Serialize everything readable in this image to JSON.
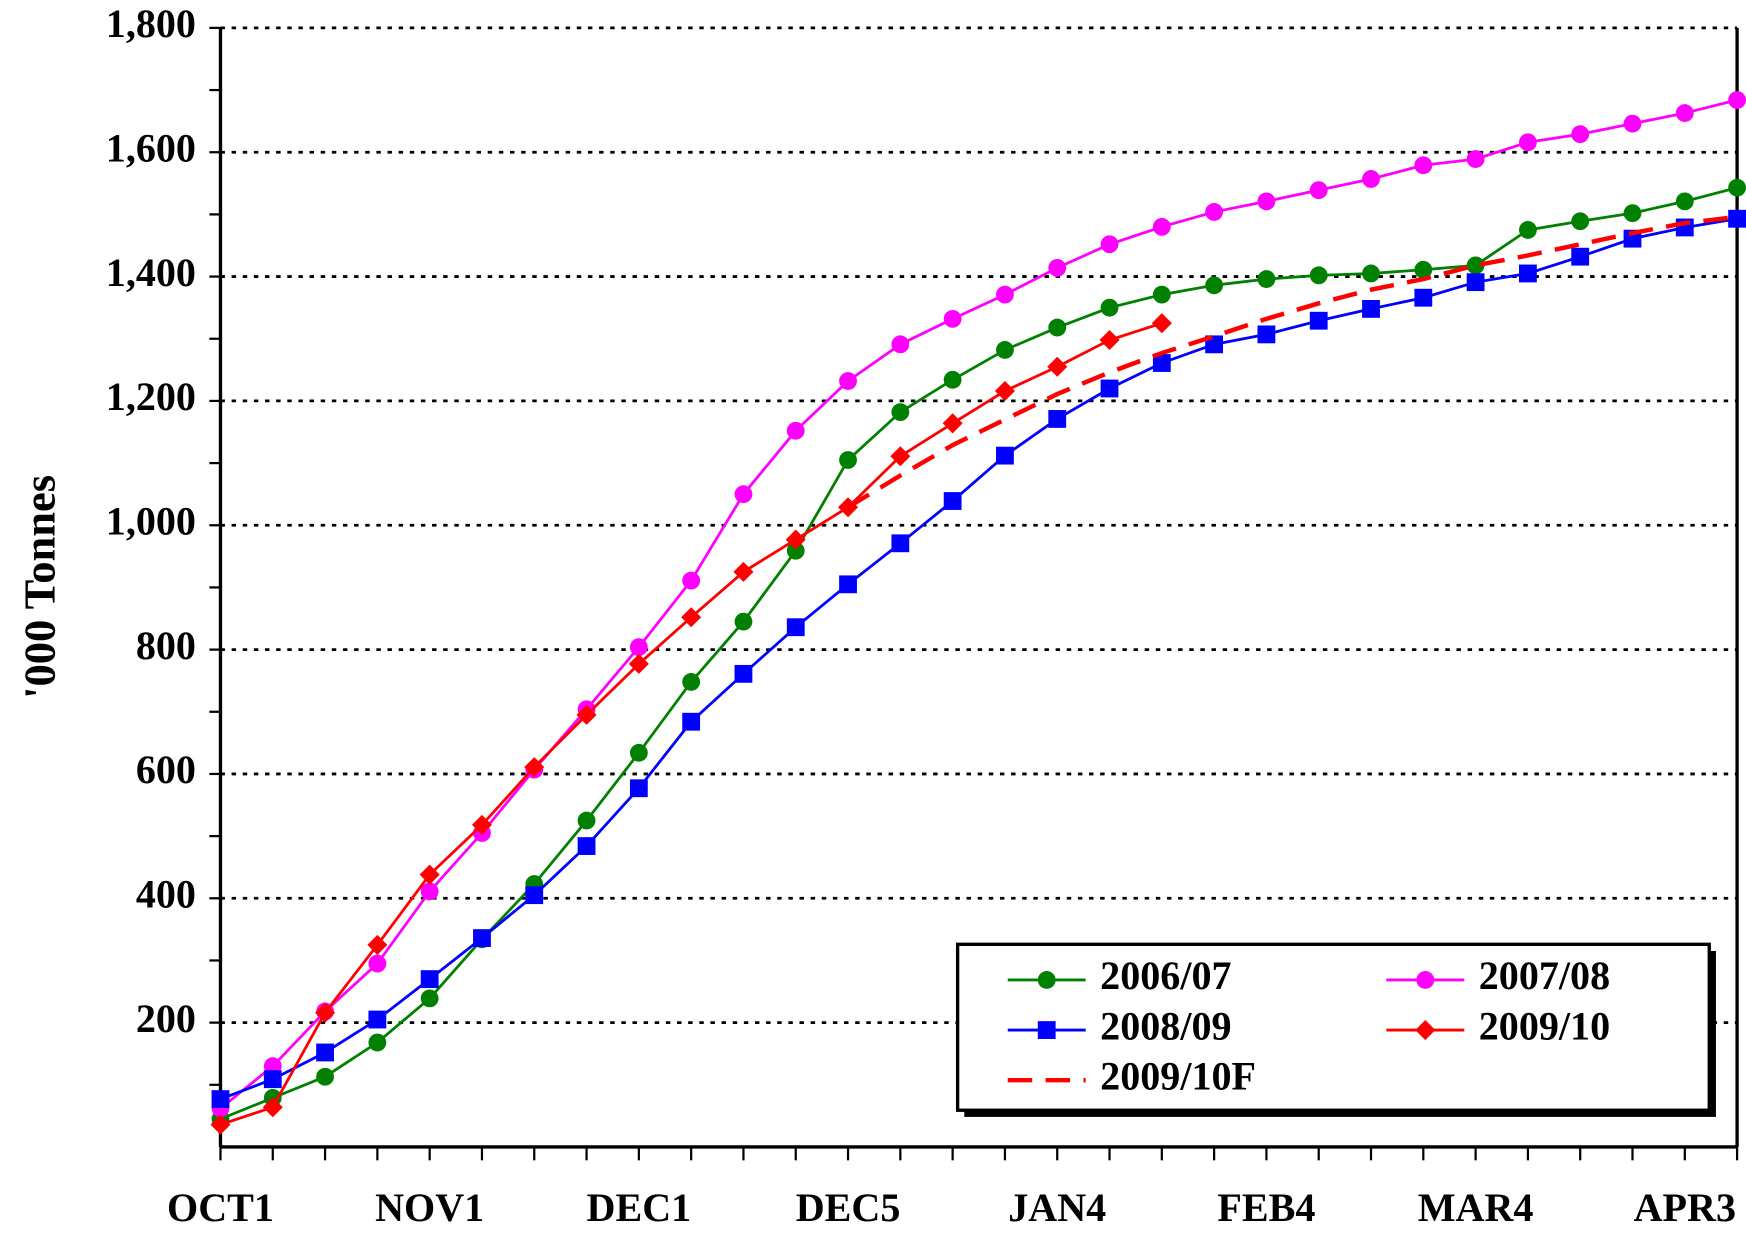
{
  "chart_data": {
    "type": "line",
    "y_label": "'000 Tonnes",
    "categories": [
      "OCT1",
      null,
      null,
      null,
      "NOV1",
      null,
      null,
      null,
      "DEC1",
      null,
      null,
      null,
      "DEC5",
      null,
      null,
      null,
      "JAN4",
      null,
      null,
      null,
      "FEB4",
      null,
      null,
      null,
      "MAR4",
      null,
      null,
      null,
      "APR3",
      null
    ],
    "ylim": [
      0,
      1800
    ],
    "yticks": [
      200,
      400,
      600,
      800,
      {
        "value": 1000,
        "label": "1,000"
      },
      {
        "value": 1200,
        "label": "1,200"
      },
      {
        "value": 1400,
        "label": "1,400"
      },
      {
        "value": 1600,
        "label": "1,600"
      },
      {
        "value": 1800,
        "label": "1,800"
      }
    ],
    "grid": true,
    "series": [
      {
        "name": "2006/07",
        "color": "#008000",
        "marker": "circle",
        "values": [
          45,
          79,
          113,
          168,
          239,
          334,
          423,
          525,
          634,
          748,
          845,
          959,
          1105,
          1182,
          1234,
          1282,
          1318,
          1350,
          1371,
          1386,
          1396,
          1402,
          1405,
          1411,
          1418,
          1475,
          1489,
          1502,
          1521,
          1543
        ]
      },
      {
        "name": "2007/08",
        "color": "#ff00ff",
        "marker": "circle",
        "values": [
          62,
          130,
          218,
          295,
          411,
          505,
          607,
          704,
          804,
          911,
          1050,
          1152,
          1232,
          1291,
          1332,
          1371,
          1414,
          1452,
          1480,
          1504,
          1521,
          1539,
          1557,
          1579,
          1589,
          1616,
          1629,
          1646,
          1663,
          1684
        ]
      },
      {
        "name": "2008/09",
        "color": "#0000ff",
        "marker": "square",
        "values": [
          77,
          109,
          152,
          205,
          270,
          336,
          405,
          484,
          577,
          684,
          761,
          836,
          905,
          971,
          1039,
          1112,
          1171,
          1220,
          1261,
          1291,
          1307,
          1329,
          1348,
          1366,
          1391,
          1405,
          1432,
          1461,
          1479,
          1493
        ]
      },
      {
        "name": "2009/10",
        "color": "#ff0000",
        "marker": "diamond",
        "values": [
          36,
          64,
          216,
          325,
          438,
          518,
          611,
          695,
          777,
          852,
          925,
          977,
          1029,
          1111,
          1164,
          1216,
          1255,
          1298,
          1325,
          null,
          null,
          null,
          null,
          null,
          null,
          null,
          null,
          null,
          null,
          null
        ]
      },
      {
        "name": "2009/10F",
        "color": "#ff0000",
        "dashed": true,
        "values": [
          null,
          null,
          null,
          null,
          null,
          null,
          null,
          null,
          null,
          null,
          null,
          null,
          1029,
          1080,
          1129,
          1170,
          1211,
          1246,
          1277,
          1304,
          1332,
          1357,
          1379,
          1396,
          1418,
          1434,
          1452,
          1470,
          1486,
          1496
        ]
      }
    ]
  }
}
